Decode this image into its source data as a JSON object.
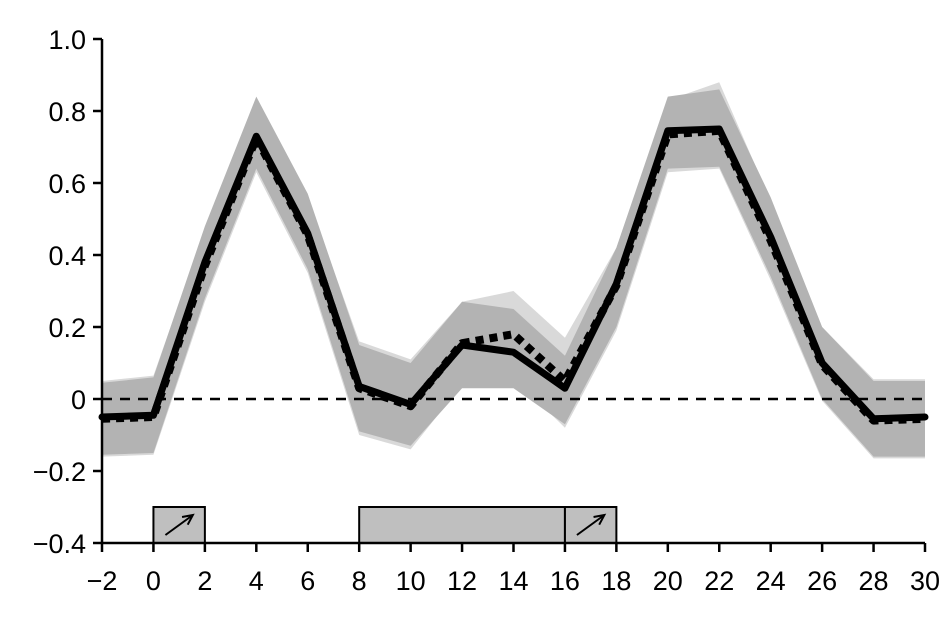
{
  "chart_data": {
    "type": "line",
    "title": "",
    "xlabel": "",
    "ylabel": "",
    "xlim": [
      -2,
      30
    ],
    "ylim": [
      -0.4,
      1.0
    ],
    "grid": false,
    "xticks": [
      -2,
      0,
      2,
      4,
      6,
      8,
      10,
      12,
      14,
      16,
      18,
      20,
      22,
      24,
      26,
      28,
      30
    ],
    "xtick_labels": [
      "−2",
      "0",
      "2",
      "4",
      "6",
      "8",
      "10",
      "12",
      "14",
      "16",
      "18",
      "20",
      "22",
      "24",
      "26",
      "28",
      "30"
    ],
    "yticks": [
      -0.4,
      -0.2,
      0,
      0.2,
      0.4,
      0.6,
      0.8,
      1.0
    ],
    "ytick_labels": [
      "−0.4",
      "−0.2",
      "0",
      "0.2",
      "0.4",
      "0.6",
      "0.8",
      "1.0"
    ],
    "x": [
      -2,
      0,
      2,
      4,
      6,
      8,
      10,
      12,
      14,
      16,
      18,
      20,
      22,
      24,
      26,
      28,
      30
    ],
    "series": [
      {
        "style": "solid",
        "values": [
          -0.05,
          -0.045,
          0.38,
          0.73,
          0.46,
          0.035,
          -0.015,
          0.15,
          0.13,
          0.03,
          0.32,
          0.745,
          0.75,
          0.45,
          0.1,
          -0.055,
          -0.05
        ],
        "band_lower": [
          -0.155,
          -0.15,
          0.28,
          0.64,
          0.36,
          -0.09,
          -0.13,
          0.03,
          0.03,
          -0.07,
          0.2,
          0.64,
          0.645,
          0.34,
          0.0,
          -0.16,
          -0.16
        ],
        "band_upper": [
          0.045,
          0.06,
          0.48,
          0.84,
          0.57,
          0.15,
          0.1,
          0.27,
          0.25,
          0.12,
          0.42,
          0.84,
          0.86,
          0.56,
          0.2,
          0.05,
          0.05
        ]
      },
      {
        "style": "dotted",
        "values": [
          -0.055,
          -0.05,
          0.37,
          0.725,
          0.455,
          0.03,
          -0.02,
          0.155,
          0.18,
          0.05,
          0.315,
          0.735,
          0.745,
          0.44,
          0.095,
          -0.06,
          -0.055
        ],
        "band_lower": [
          -0.16,
          -0.155,
          0.27,
          0.63,
          0.35,
          -0.1,
          -0.14,
          0.04,
          0.06,
          -0.08,
          0.19,
          0.63,
          0.64,
          0.33,
          -0.005,
          -0.165,
          -0.165
        ],
        "band_upper": [
          0.05,
          0.065,
          0.47,
          0.83,
          0.56,
          0.16,
          0.11,
          0.27,
          0.3,
          0.17,
          0.42,
          0.83,
          0.88,
          0.55,
          0.2,
          0.055,
          0.055
        ]
      }
    ],
    "reference_line": {
      "y": 0,
      "style": "dashed"
    },
    "event_bars": [
      {
        "x_start": 0,
        "x_end": 2,
        "arrow": true
      },
      {
        "x_start": 8,
        "x_end": 16,
        "arrow": false
      },
      {
        "x_start": 16,
        "x_end": 18,
        "arrow": true
      }
    ]
  },
  "colors": {
    "solid_line": "#000000",
    "dotted_line": "#000000",
    "band_solid": "#b3b3b3",
    "band_dotted": "#d9d9d9",
    "event_bar_fill": "#bfbfbf",
    "axis": "#000000"
  }
}
